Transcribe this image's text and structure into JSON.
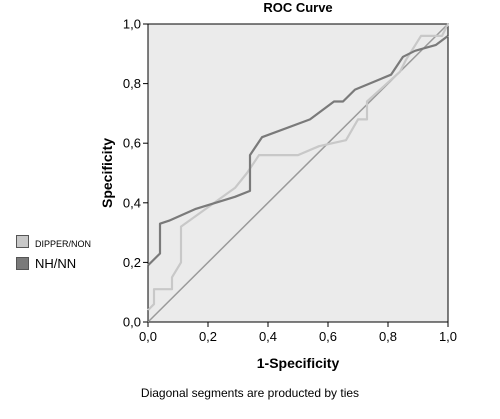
{
  "chart_data": {
    "type": "line",
    "title": "ROC Curve",
    "xlabel": "1-Specificity",
    "ylabel": "Specificity",
    "xlim": [
      0,
      1
    ],
    "ylim": [
      0,
      1
    ],
    "xticks": [
      "0,0",
      "0,2",
      "0,4",
      "0,6",
      "0,8",
      "1,0"
    ],
    "yticks": [
      "0,0",
      "0,2",
      "0,4",
      "0,6",
      "0,8",
      "1,0"
    ],
    "grid": false,
    "legend_position": "left",
    "plot_background": "#ebebeb",
    "series": [
      {
        "name": "DIPPER/NON",
        "color": "#c8c8c8",
        "points": [
          [
            0.0,
            0.04
          ],
          [
            0.02,
            0.06
          ],
          [
            0.02,
            0.11
          ],
          [
            0.08,
            0.11
          ],
          [
            0.08,
            0.15
          ],
          [
            0.11,
            0.2
          ],
          [
            0.11,
            0.32
          ],
          [
            0.29,
            0.45
          ],
          [
            0.33,
            0.5
          ],
          [
            0.37,
            0.56
          ],
          [
            0.5,
            0.56
          ],
          [
            0.57,
            0.59
          ],
          [
            0.66,
            0.61
          ],
          [
            0.7,
            0.68
          ],
          [
            0.73,
            0.68
          ],
          [
            0.73,
            0.74
          ],
          [
            0.84,
            0.84
          ],
          [
            0.86,
            0.88
          ],
          [
            0.91,
            0.96
          ],
          [
            0.98,
            0.96
          ],
          [
            1.0,
            1.0
          ]
        ]
      },
      {
        "name": "NH/NN",
        "color": "#7a7a7a",
        "points": [
          [
            0.0,
            0.19
          ],
          [
            0.04,
            0.23
          ],
          [
            0.04,
            0.33
          ],
          [
            0.07,
            0.34
          ],
          [
            0.16,
            0.38
          ],
          [
            0.29,
            0.42
          ],
          [
            0.34,
            0.44
          ],
          [
            0.34,
            0.56
          ],
          [
            0.38,
            0.62
          ],
          [
            0.54,
            0.68
          ],
          [
            0.62,
            0.74
          ],
          [
            0.65,
            0.74
          ],
          [
            0.69,
            0.78
          ],
          [
            0.81,
            0.83
          ],
          [
            0.85,
            0.89
          ],
          [
            0.89,
            0.91
          ],
          [
            0.96,
            0.93
          ],
          [
            1.0,
            0.96
          ]
        ]
      }
    ],
    "reference_line": {
      "color": "#9a9a9a",
      "from": [
        0,
        0
      ],
      "to": [
        1,
        1
      ]
    }
  },
  "footnote": "Diagonal segments are producted by ties"
}
